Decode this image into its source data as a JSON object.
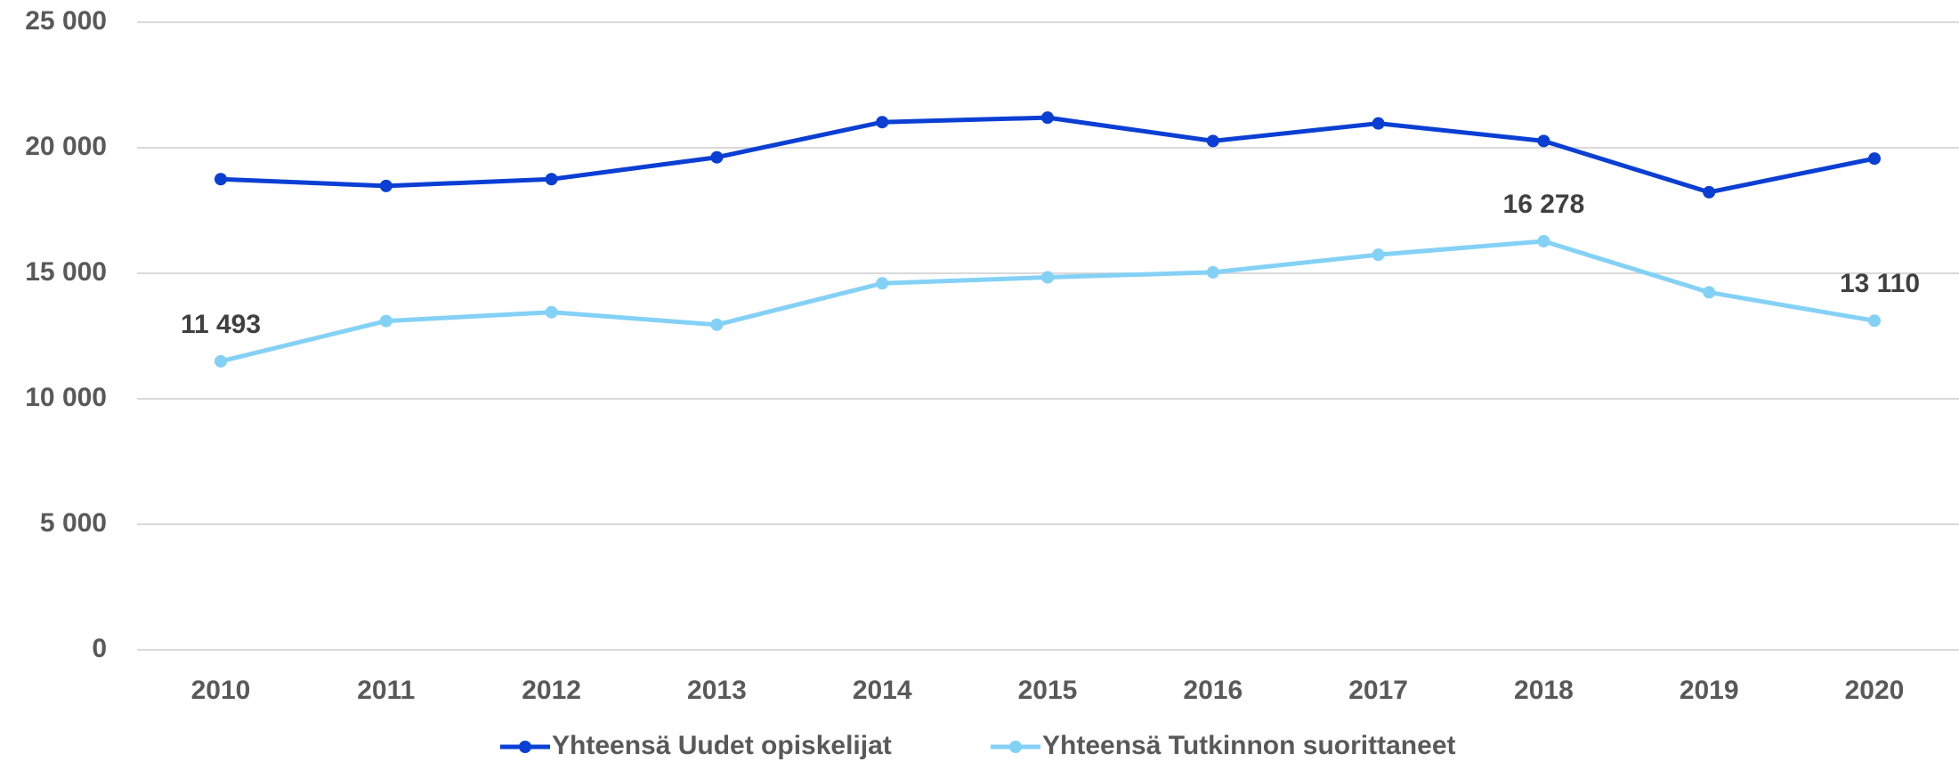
{
  "chart_data": {
    "type": "line",
    "categories": [
      "2010",
      "2011",
      "2012",
      "2013",
      "2014",
      "2015",
      "2016",
      "2017",
      "2018",
      "2019",
      "2020"
    ],
    "series": [
      {
        "name": "Yhteensä Uudet opiskelijat",
        "color": "#0b3fd4",
        "values": [
          18750,
          18480,
          18750,
          19620,
          21020,
          21200,
          20270,
          20970,
          20270,
          18230,
          19570
        ]
      },
      {
        "name": "Yhteensä Tutkinnon suorittaneet",
        "color": "#84d1f6",
        "values": [
          11493,
          13100,
          13450,
          12950,
          14600,
          14840,
          15040,
          15740,
          16278,
          14240,
          13110
        ],
        "value_labels": [
          "11 493",
          null,
          null,
          null,
          null,
          null,
          null,
          null,
          "16 278",
          null,
          "13 110"
        ]
      }
    ],
    "ylim": [
      0,
      25000
    ],
    "yticks": [
      {
        "value": 0,
        "label": "0"
      },
      {
        "value": 5000,
        "label": "5 000"
      },
      {
        "value": 10000,
        "label": "10 000"
      },
      {
        "value": 15000,
        "label": "15 000"
      },
      {
        "value": 20000,
        "label": "20 000"
      },
      {
        "value": 25000,
        "label": "25 000"
      }
    ],
    "grid": true,
    "legend": "bottom"
  }
}
